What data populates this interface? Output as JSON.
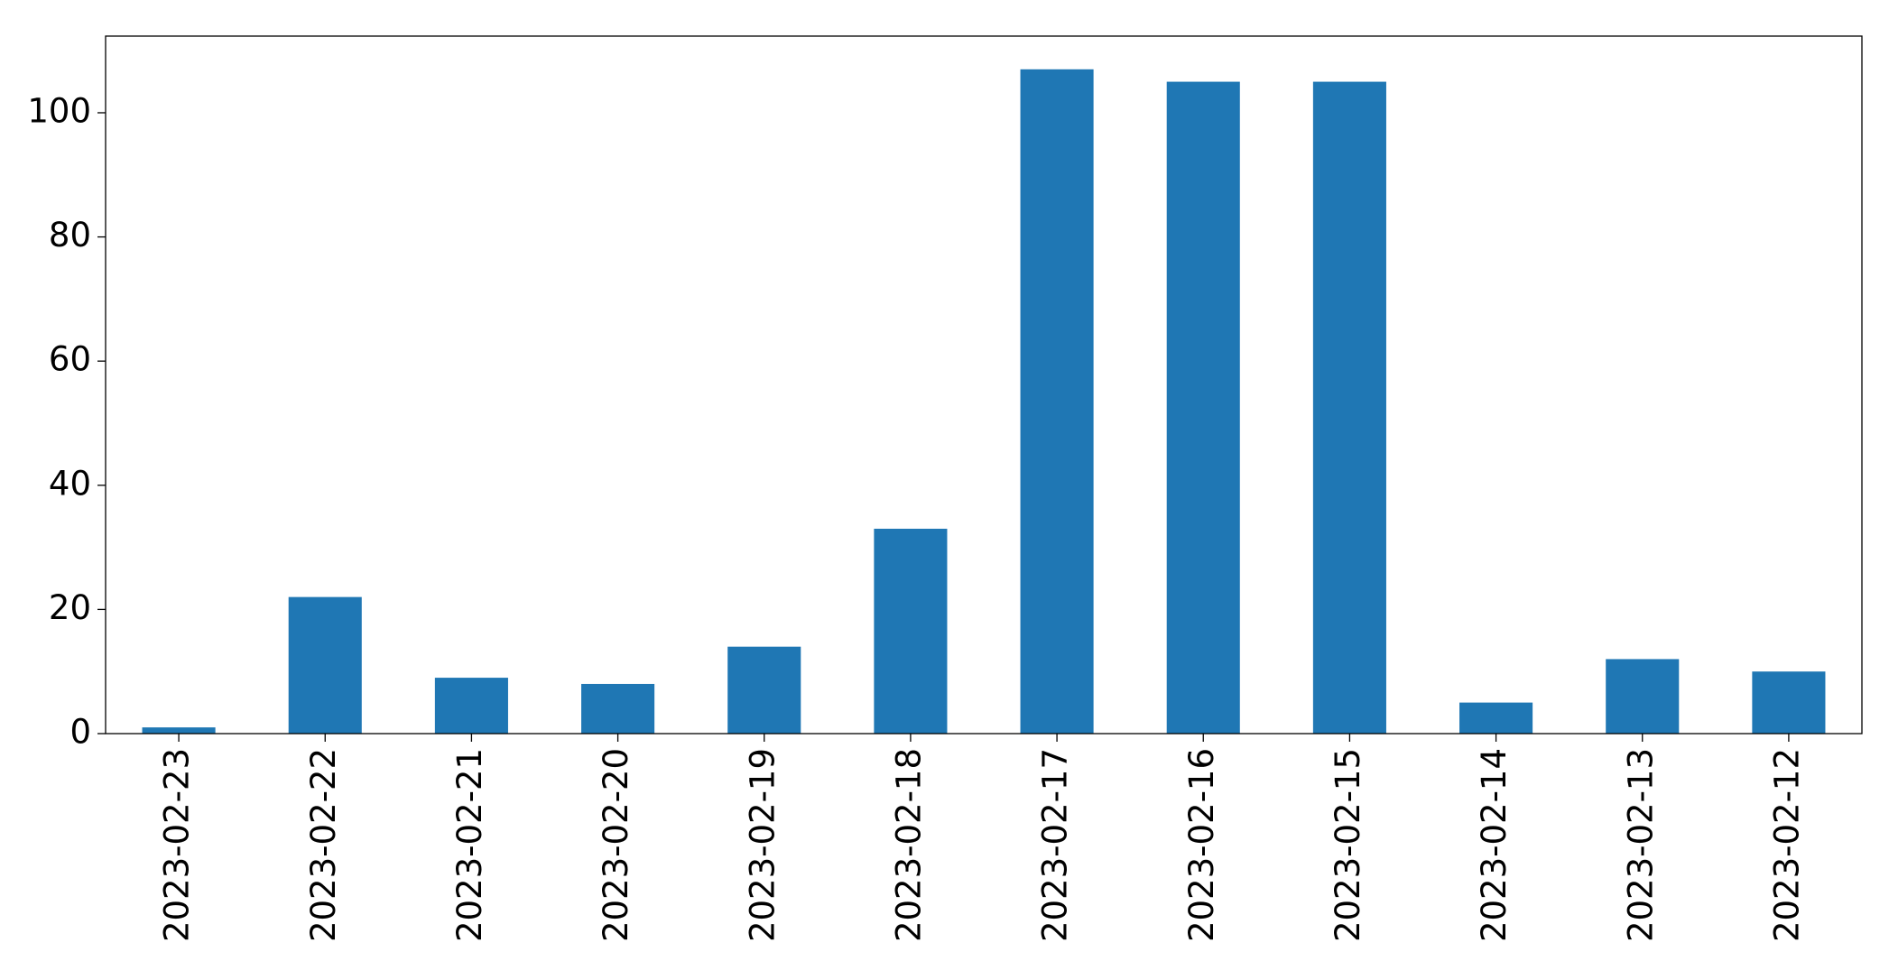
{
  "chart_data": {
    "type": "bar",
    "categories": [
      "2023-02-23",
      "2023-02-22",
      "2023-02-21",
      "2023-02-20",
      "2023-02-19",
      "2023-02-18",
      "2023-02-17",
      "2023-02-16",
      "2023-02-15",
      "2023-02-14",
      "2023-02-13",
      "2023-02-12"
    ],
    "values": [
      1,
      22,
      9,
      8,
      14,
      33,
      107,
      105,
      105,
      5,
      12,
      10
    ],
    "color": "#1f77b4",
    "ylim": [
      0,
      112.35
    ],
    "yticks": [
      0,
      20,
      40,
      60,
      80,
      100
    ],
    "grid": false
  }
}
